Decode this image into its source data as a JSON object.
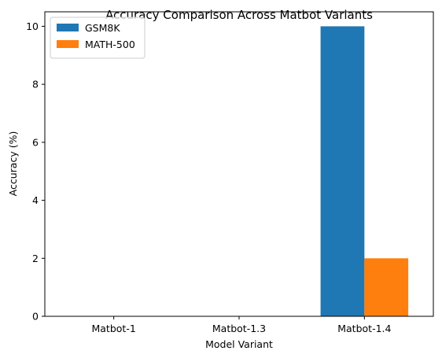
{
  "chart_data": {
    "type": "bar",
    "title": "Accuracy Comparison Across Matbot Variants",
    "xlabel": "Model Variant",
    "ylabel": "Accuracy (%)",
    "categories": [
      "Matbot-1",
      "Matbot-1.3",
      "Matbot-1.4"
    ],
    "series": [
      {
        "name": "GSM8K",
        "values": [
          0,
          0,
          10
        ],
        "color": "#1f77b4"
      },
      {
        "name": "MATH-500",
        "values": [
          0,
          0,
          2
        ],
        "color": "#ff7f0e"
      }
    ],
    "ylim": [
      0,
      10.5
    ],
    "yticks": [
      0,
      2,
      4,
      6,
      8,
      10
    ],
    "grid": false,
    "legend": "top-left"
  }
}
